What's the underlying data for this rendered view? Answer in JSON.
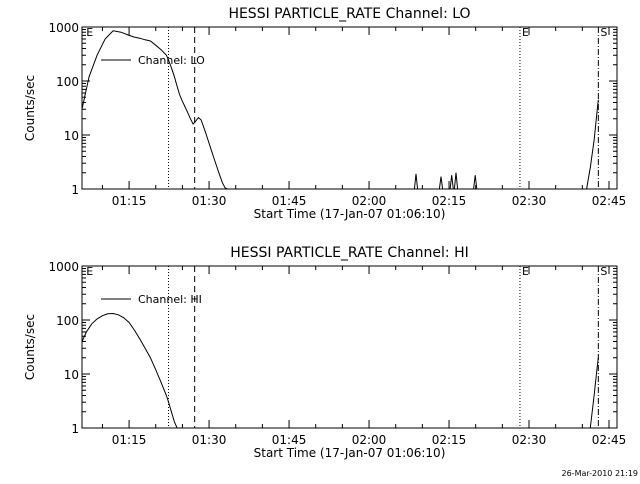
{
  "footer": {
    "timestamp": "26-Mar-2010 21:19"
  },
  "chart_data": [
    {
      "type": "line",
      "title": "HESSI PARTICLE_RATE Channel: LO",
      "xlabel": "Start Time (17-Jan-07 01:06:10)",
      "ylabel": "Counts/sec",
      "yscale": "log",
      "ylim": [
        1,
        1000
      ],
      "xlim_minutes": [
        66.17,
        166.5
      ],
      "xticks": [
        {
          "t": 75,
          "label": "01:15"
        },
        {
          "t": 90,
          "label": "01:30"
        },
        {
          "t": 105,
          "label": "01:45"
        },
        {
          "t": 120,
          "label": "02:00"
        },
        {
          "t": 135,
          "label": "02:15"
        },
        {
          "t": 150,
          "label": "02:30"
        },
        {
          "t": 165,
          "label": "02:45"
        }
      ],
      "yticks": [
        {
          "v": 1,
          "label": "1"
        },
        {
          "v": 10,
          "label": "10"
        },
        {
          "v": 100,
          "label": "100"
        },
        {
          "v": 1000,
          "label": "1000"
        }
      ],
      "legend": "Channel: LO",
      "markers": [
        {
          "t": 66.6,
          "label": "E",
          "style": "none"
        },
        {
          "t": 82.4,
          "label": "",
          "style": "dotted"
        },
        {
          "t": 87.3,
          "label": "",
          "style": "dashed"
        },
        {
          "t": 148.3,
          "label": "E",
          "style": "dotted"
        },
        {
          "t": 163.0,
          "label": "S",
          "style": "dashdot"
        }
      ],
      "series": [
        {
          "t": [
            66.17,
            67.5,
            69,
            70.5,
            72,
            73.5,
            75,
            76,
            77,
            78,
            79,
            80,
            81,
            82,
            82.5,
            83,
            83.5,
            84,
            84.5,
            85,
            85.5,
            86,
            86.5,
            87,
            87.5,
            88,
            88.5,
            89,
            89.5,
            90,
            90.5,
            91,
            91.5,
            92,
            92.5,
            93,
            93.5
          ],
          "values": [
            30,
            120,
            300,
            600,
            850,
            800,
            700,
            650,
            620,
            580,
            550,
            460,
            380,
            300,
            230,
            170,
            120,
            80,
            55,
            42,
            33,
            26,
            20,
            16,
            18,
            21,
            19,
            14,
            10,
            7,
            5,
            3.5,
            2.5,
            1.8,
            1.3,
            1.05,
            1
          ],
          "style": "solid"
        },
        {
          "t": [
            128.5,
            128.8,
            129.1,
            133.2,
            133.5,
            133.8,
            135.2,
            135.5,
            135.8,
            136.0,
            136.3,
            136.6,
            139.6,
            139.9,
            140.2
          ],
          "values": [
            1,
            1.9,
            1,
            1,
            1.7,
            1,
            1,
            1.8,
            1,
            1,
            2.0,
            1,
            1,
            1.8,
            1
          ],
          "style": "solid"
        },
        {
          "t": [
            160.8,
            161.5,
            162.2,
            162.8,
            163.0
          ],
          "values": [
            1,
            2.5,
            8,
            30,
            45
          ],
          "style": "solid"
        }
      ]
    },
    {
      "type": "line",
      "title": "HESSI PARTICLE_RATE Channel: HI",
      "xlabel": "Start Time (17-Jan-07 01:06:10)",
      "ylabel": "Counts/sec",
      "yscale": "log",
      "ylim": [
        1,
        1000
      ],
      "xlim_minutes": [
        66.17,
        166.5
      ],
      "xticks": [
        {
          "t": 75,
          "label": "01:15"
        },
        {
          "t": 90,
          "label": "01:30"
        },
        {
          "t": 105,
          "label": "01:45"
        },
        {
          "t": 120,
          "label": "02:00"
        },
        {
          "t": 135,
          "label": "02:15"
        },
        {
          "t": 150,
          "label": "02:30"
        },
        {
          "t": 165,
          "label": "02:45"
        }
      ],
      "yticks": [
        {
          "v": 1,
          "label": "1"
        },
        {
          "v": 10,
          "label": "10"
        },
        {
          "v": 100,
          "label": "100"
        },
        {
          "v": 1000,
          "label": "1000"
        }
      ],
      "legend": "Channel: HI",
      "markers": [
        {
          "t": 66.6,
          "label": "E",
          "style": "none"
        },
        {
          "t": 82.4,
          "label": "",
          "style": "dotted"
        },
        {
          "t": 87.3,
          "label": "",
          "style": "dashed"
        },
        {
          "t": 148.3,
          "label": "E",
          "style": "dotted"
        },
        {
          "t": 163.0,
          "label": "S",
          "style": "dashdot"
        }
      ],
      "series": [
        {
          "t": [
            66.17,
            67,
            68,
            69,
            70,
            71,
            72,
            73,
            74,
            75,
            76,
            77,
            78,
            79,
            80,
            81,
            82,
            82.5,
            83,
            83.5,
            84
          ],
          "values": [
            40,
            60,
            85,
            105,
            120,
            130,
            132,
            125,
            110,
            90,
            65,
            45,
            30,
            20,
            12,
            7,
            4,
            2.8,
            1.9,
            1.3,
            1
          ],
          "style": "solid"
        },
        {
          "t": [
            161.5,
            162.2,
            162.8,
            163.0
          ],
          "values": [
            1,
            4,
            14,
            20
          ],
          "style": "solid"
        }
      ]
    }
  ]
}
